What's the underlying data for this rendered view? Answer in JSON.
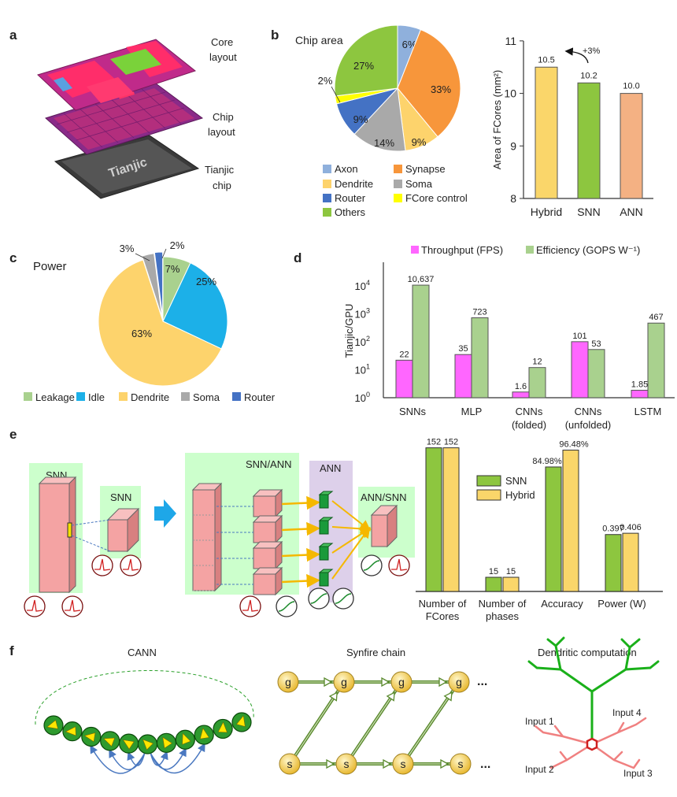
{
  "panels": {
    "a": {
      "letter": "a",
      "labels": [
        [
          "Core",
          "layout"
        ],
        [
          "Chip",
          "layout"
        ],
        [
          "Tianjic",
          "chip"
        ]
      ],
      "chip_print": "Tianjic"
    },
    "b": {
      "letter": "b"
    },
    "c": {
      "letter": "c"
    },
    "d": {
      "letter": "d"
    },
    "e": {
      "letter": "e",
      "diagram": {
        "snn1": "SNN",
        "snn2": "SNN",
        "snn_ann": "SNN/ANN",
        "ann": "ANN",
        "ann_snn": "ANN/SNN"
      },
      "colors": {
        "green_box": "#ccffcc",
        "purple_box": "#ddd0ea",
        "cube": "#f4a3a3",
        "arrow": "#f5b800",
        "transition_arrow": "#1ea7e8"
      }
    },
    "f": {
      "letter": "f",
      "cann_title": "CANN",
      "synfire_title": "Synfire chain",
      "synfire_g": "g",
      "synfire_s": "s",
      "ellipsis": "...",
      "dendritic_title": "Dendritic computation",
      "inputs": [
        "Input 1",
        "Input 2",
        "Input 3",
        "Input 4"
      ]
    }
  },
  "chart_data": [
    {
      "type": "pie",
      "title": "Chip area",
      "labels": [
        "Axon",
        "Synapse",
        "Dendrite",
        "Soma",
        "Router",
        "FCore control",
        "Others"
      ],
      "values": [
        6,
        33,
        9,
        14,
        9,
        2,
        27
      ],
      "value_labels": [
        "6%",
        "33%",
        "9%",
        "14%",
        "9%",
        "2%",
        "27%"
      ],
      "colors": [
        "#8fb0dc",
        "#f7963b",
        "#fdd36c",
        "#a9a9a9",
        "#4472c4",
        "#ffff00",
        "#8dc63f"
      ],
      "legend": "bottom"
    },
    {
      "type": "bar",
      "categories": [
        "Hybrid",
        "SNN",
        "ANN"
      ],
      "values": [
        10.5,
        10.2,
        10.0
      ],
      "value_labels": [
        "10.5",
        "10.2",
        "10.0"
      ],
      "colors": [
        "#fad66a",
        "#8dc63f",
        "#f4b183"
      ],
      "ylabel": "Area of FCores (mm²)",
      "ylim": [
        8,
        11
      ],
      "yticks": [
        "8",
        "9",
        "10",
        "11"
      ],
      "annotation": "+3%"
    },
    {
      "type": "pie",
      "title": "Power",
      "labels": [
        "Leakage",
        "Idle",
        "Dendrite",
        "Soma",
        "Router"
      ],
      "values": [
        7,
        25,
        63,
        3,
        2
      ],
      "value_labels": [
        "7%",
        "25%",
        "63%",
        "3%",
        "2%"
      ],
      "colors": [
        "#a9d18e",
        "#1cb0e8",
        "#fdd36c",
        "#a9a9a9",
        "#4472c4"
      ],
      "legend": "bottom"
    },
    {
      "type": "bar",
      "scale": "log",
      "ylabel": "Tianjic/GPU",
      "ylim": [
        1,
        70000
      ],
      "yticks": [
        "10",
        "10",
        "10",
        "10",
        "10"
      ],
      "ytick_exponents": [
        "0",
        "1",
        "2",
        "3",
        "4"
      ],
      "categories": [
        [
          "SNNs"
        ],
        [
          "MLP"
        ],
        [
          "CNNs",
          "(folded)"
        ],
        [
          "CNNs",
          "(unfolded)"
        ],
        [
          "LSTM"
        ]
      ],
      "series": [
        {
          "name": "Throughput (FPS)",
          "color": "#ff66ff",
          "values": [
            22,
            35,
            1.6,
            101,
            1.85
          ],
          "value_labels": [
            "22",
            "35",
            "1.6",
            "101",
            "1.85"
          ]
        },
        {
          "name": "Efficiency (GOPS W⁻¹)",
          "color": "#a9d18e",
          "values": [
            10637,
            723,
            12,
            53,
            467
          ],
          "value_labels": [
            "10,637",
            "723",
            "12",
            "53",
            "467"
          ]
        }
      ],
      "legend": "top"
    },
    {
      "type": "bar",
      "categories": [
        [
          "Number of",
          "FCores"
        ],
        [
          "Number of",
          "phases"
        ],
        [
          "Accuracy"
        ],
        [
          "Power (W)"
        ]
      ],
      "series": [
        {
          "name": "SNN",
          "color": "#8dc63f",
          "values": [
            152,
            15,
            84.98,
            0.397
          ],
          "value_labels": [
            "152",
            "15",
            "84.98%",
            "0.397"
          ]
        },
        {
          "name": "Hybrid",
          "color": "#fad66a",
          "values": [
            152,
            15,
            96.48,
            0.406
          ],
          "value_labels": [
            "152",
            "15",
            "96.48%",
            "0.406"
          ]
        }
      ],
      "legend": "top-center"
    }
  ]
}
